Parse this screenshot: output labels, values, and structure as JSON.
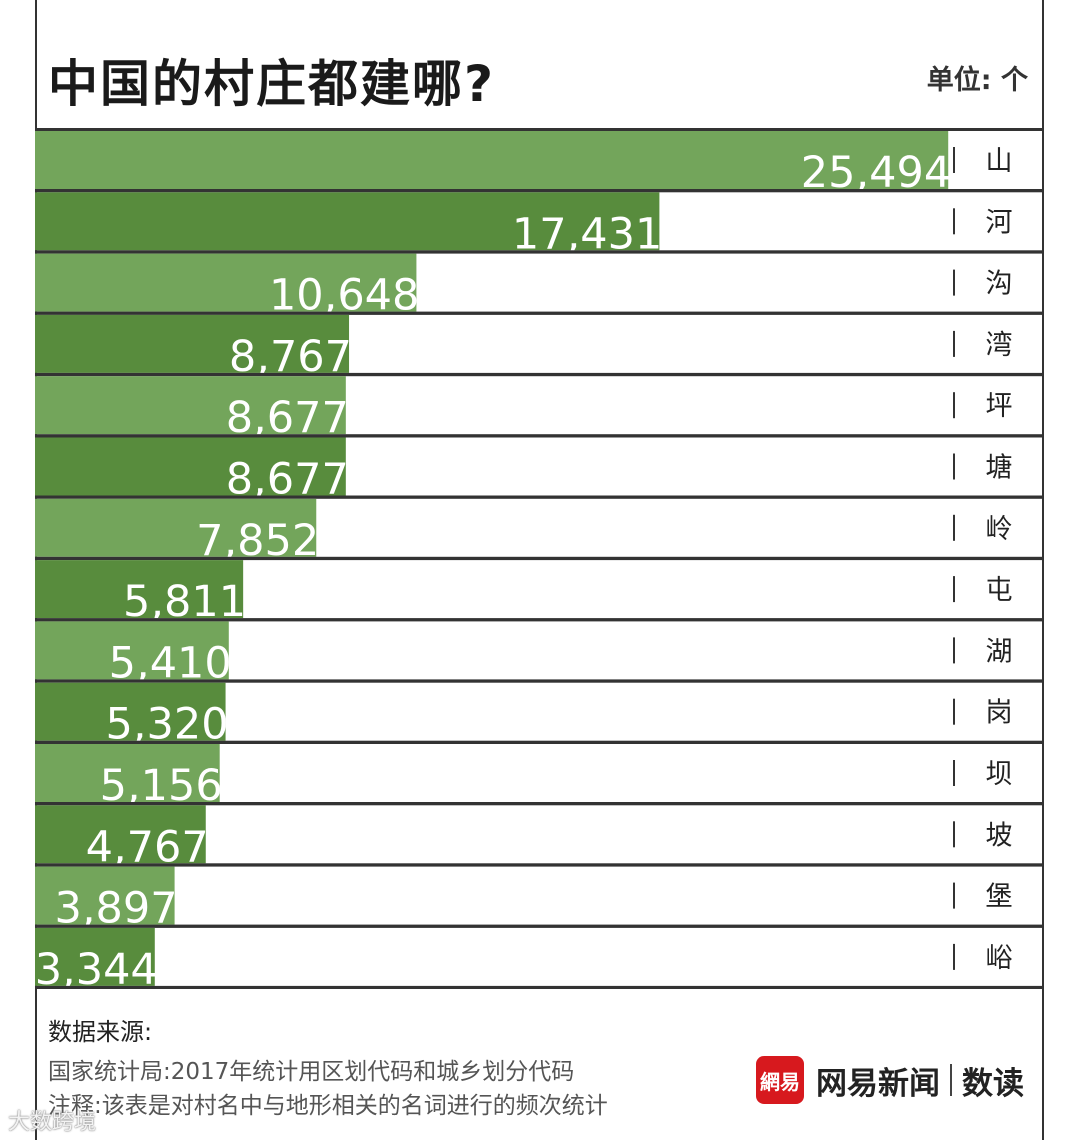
{
  "header": {
    "title": "中国的村庄都建哪?",
    "unit": "单位: 个"
  },
  "colors": {
    "bar_light": "#73a55b",
    "bar_dark": "#588c3d",
    "row_line": "#333333"
  },
  "chart_data": {
    "type": "bar",
    "orientation": "horizontal",
    "title": "中国的村庄都建哪?",
    "xlabel": "",
    "ylabel": "",
    "unit": "个",
    "xlim": [
      0,
      26800
    ],
    "categories": [
      "山",
      "河",
      "沟",
      "湾",
      "坪",
      "塘",
      "岭",
      "屯",
      "湖",
      "岗",
      "坝",
      "坡",
      "堡",
      "峪"
    ],
    "values": [
      25494,
      17431,
      10648,
      8767,
      8677,
      8677,
      7852,
      5811,
      5410,
      5320,
      5156,
      4767,
      3897,
      3344
    ],
    "value_labels": [
      "25,494",
      "17,431",
      "10,648",
      "8,767",
      "8,677",
      "8,677",
      "7,852",
      "5,811",
      "5,410",
      "5,320",
      "5,156",
      "4,767",
      "3,897",
      "3,344"
    ]
  },
  "footer": {
    "source_label": "数据来源:",
    "source_line": "国家统计局:2017年统计用区划代码和城乡划分代码",
    "note_line": "注释:该表是对村名中与地形相关的名词进行的频次统计"
  },
  "brand": {
    "logo_text": "網易",
    "name": "网易新闻",
    "sub": "数读"
  },
  "watermark": "大数跨境"
}
